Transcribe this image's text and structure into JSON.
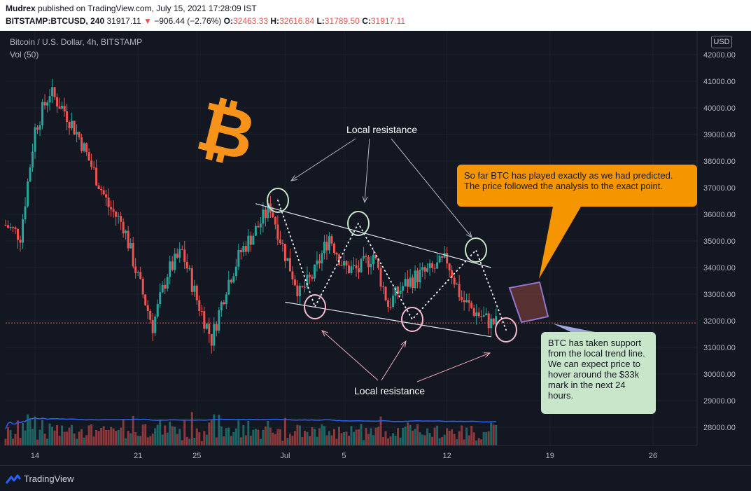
{
  "header": {
    "publisher": "Mudrex",
    "published_text": "published on TradingView.com, July 15, 2021 17:28:09 IST",
    "symbol": "BITSTAMP:BTCUSD, 240",
    "last": "31917.11",
    "change": "−906.44 (−2.76%)",
    "open_label": "O:",
    "open": "32463.33",
    "high_label": "H:",
    "high": "32616.84",
    "low_label": "L:",
    "low": "31789.50",
    "close_label": "C:",
    "close": "31917.11"
  },
  "legend": {
    "title": "Bitcoin / U.S. Dollar, 4h, BITSTAMP",
    "volume": "Vol (50)"
  },
  "currency_badge": "USD",
  "annotations": {
    "top_label": "Local resistance",
    "bottom_label": "Local resistance",
    "orange_callout": "So far BTC has played exactly as we had predicted. The price followed the analysis to the exact point.",
    "green_callout": "BTC has taken support from the local trend line. We can expect price to hover around the $33k mark in the next 24 hours."
  },
  "footer": {
    "brand": "TradingView"
  },
  "colors": {
    "up": "#26a69a",
    "down": "#ef5350",
    "volume_ma": "#2962ff",
    "callout_orange": "#f59500",
    "callout_green": "#c8e6c9",
    "bitcoin_logo": "#f7931a"
  },
  "icons": [
    "bitcoin-logo-icon",
    "tradingview-logo-icon"
  ],
  "chart_data": {
    "type": "candlestick",
    "title": "Bitcoin / U.S. Dollar, 4h, BITSTAMP",
    "ylim": [
      27000,
      42500
    ],
    "y_ticks": [
      "42000.00",
      "41000.00",
      "40000.00",
      "39000.00",
      "38000.00",
      "37000.00",
      "36000.00",
      "35000.00",
      "34000.00",
      "33000.00",
      "32000.00",
      "31000.00",
      "30000.00",
      "29000.00",
      "28000.00"
    ],
    "x_ticks": [
      "14",
      "21",
      "25",
      "Jul",
      "5",
      "12",
      "19",
      "26"
    ],
    "x_tick_dates": [
      "2021-06-14",
      "2021-06-21",
      "2021-06-25",
      "2021-07-01",
      "2021-07-05",
      "2021-07-12",
      "2021-07-19",
      "2021-07-26"
    ],
    "current_price": 31917.11,
    "price_path": [
      [
        "2021-06-12",
        35600
      ],
      [
        "2021-06-13",
        35200
      ],
      [
        "2021-06-14",
        39200
      ],
      [
        "2021-06-15",
        40600
      ],
      [
        "2021-06-16",
        39900
      ],
      [
        "2021-06-17",
        38900
      ],
      [
        "2021-06-18",
        37600
      ],
      [
        "2021-06-19",
        36300
      ],
      [
        "2021-06-20",
        35600
      ],
      [
        "2021-06-21",
        33600
      ],
      [
        "2021-06-22",
        31800
      ],
      [
        "2021-06-23",
        33800
      ],
      [
        "2021-06-24",
        34600
      ],
      [
        "2021-06-25",
        32800
      ],
      [
        "2021-06-26",
        31300
      ],
      [
        "2021-06-27",
        33300
      ],
      [
        "2021-06-28",
        34600
      ],
      [
        "2021-06-29",
        35400
      ],
      [
        "2021-06-30",
        36300
      ],
      [
        "2021-07-01",
        34500
      ],
      [
        "2021-07-02",
        33000
      ],
      [
        "2021-07-03",
        33800
      ],
      [
        "2021-07-04",
        35200
      ],
      [
        "2021-07-05",
        34000
      ],
      [
        "2021-07-06",
        33900
      ],
      [
        "2021-07-07",
        34500
      ],
      [
        "2021-07-08",
        32600
      ],
      [
        "2021-07-09",
        33300
      ],
      [
        "2021-07-10",
        33700
      ],
      [
        "2021-07-11",
        33900
      ],
      [
        "2021-07-12",
        34300
      ],
      [
        "2021-07-13",
        32800
      ],
      [
        "2021-07-14",
        32300
      ],
      [
        "2021-07-15",
        31917
      ]
    ],
    "trend_lines": {
      "upper": [
        [
          "2021-06-29",
          36400
        ],
        [
          "2021-07-15",
          34000
        ]
      ],
      "lower": [
        [
          "2021-07-01",
          32700
        ],
        [
          "2021-07-15",
          31400
        ]
      ]
    },
    "projection_box": [
      [
        "2021-07-14",
        33300
      ],
      [
        "2021-07-16",
        32000
      ]
    ]
  }
}
